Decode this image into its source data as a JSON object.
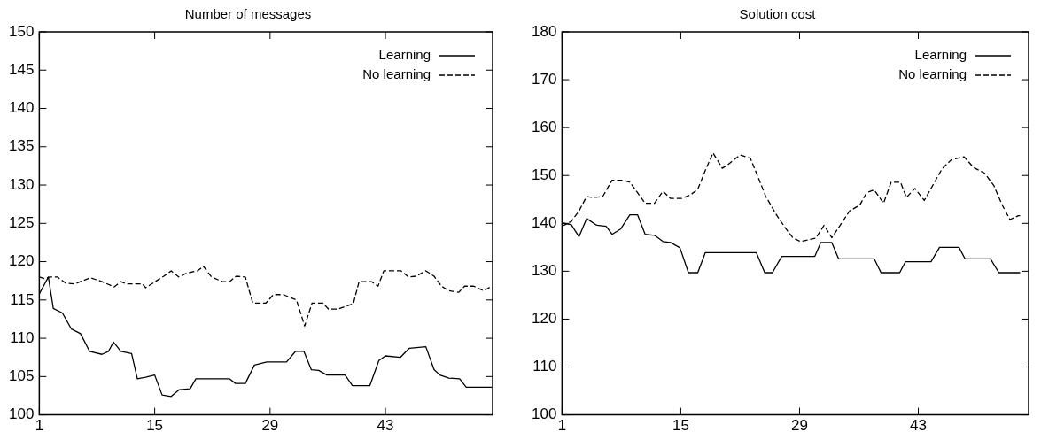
{
  "chart_data": [
    {
      "type": "line",
      "title": "Number of messages",
      "xlim": [
        1,
        56
      ],
      "xticks": [
        1,
        15,
        29,
        43
      ],
      "ylim": [
        100,
        150
      ],
      "yticks": [
        100,
        105,
        110,
        115,
        120,
        125,
        130,
        135,
        140,
        145,
        150
      ],
      "grid": false,
      "legend": "top right",
      "marker": "none",
      "series": [
        {
          "name": "Learning",
          "color": "#000000",
          "line_style": "solid",
          "x": [
            1,
            2.1,
            2.7,
            3.8,
            4.9,
            6,
            7.1,
            8.6,
            9.4,
            10,
            10.9,
            12.2,
            12.9,
            13.9,
            15,
            15.9,
            17,
            18,
            19.3,
            20,
            24.1,
            24.8,
            26,
            27.1,
            28.6,
            31,
            32.1,
            33.1,
            34,
            34.9,
            35.9,
            38.1,
            39,
            41.1,
            42.2,
            43,
            44.8,
            45.9,
            47.9,
            48.9,
            49.6,
            50.7,
            52,
            52.8,
            55.9
          ],
          "values": [
            115.8,
            118,
            113.9,
            113.3,
            111.2,
            110.6,
            108.3,
            107.9,
            108.3,
            109.5,
            108.3,
            108,
            104.7,
            104.9,
            105.2,
            102.6,
            102.4,
            103.3,
            103.4,
            104.7,
            104.7,
            104.1,
            104.1,
            106.5,
            106.9,
            106.9,
            108.3,
            108.3,
            105.9,
            105.8,
            105.2,
            105.2,
            103.8,
            103.8,
            107.1,
            107.7,
            107.5,
            108.7,
            108.9,
            105.9,
            105.2,
            104.8,
            104.7,
            103.6,
            103.6
          ]
        },
        {
          "name": "No learning",
          "color": "#000000",
          "line_style": "dashed",
          "x": [
            1,
            1.6,
            2.3,
            3.2,
            4.2,
            5.3,
            7.2,
            8.6,
            10.1,
            10.9,
            11.6,
            13.5,
            13.9,
            16.1,
            17,
            17.9,
            18.9,
            20.2,
            20.9,
            21.9,
            23.2,
            24.1,
            24.9,
            26,
            26.9,
            28.5,
            29.4,
            30.6,
            32.2,
            33.2,
            34.1,
            35.4,
            36.1,
            37.2,
            39.1,
            39.8,
            41.3,
            42.1,
            42.8,
            44.9,
            45.8,
            46.7,
            47.9,
            48.9,
            49.8,
            50.7,
            51.9,
            52.6,
            53.7,
            54.9,
            55.9
          ],
          "values": [
            118,
            117.8,
            118,
            118,
            117.2,
            117.1,
            117.9,
            117.4,
            116.7,
            117.4,
            117.1,
            117.1,
            116.6,
            118.1,
            118.8,
            118,
            118.5,
            118.8,
            119.4,
            118,
            117.4,
            117.4,
            118.1,
            118,
            114.6,
            114.6,
            115.7,
            115.7,
            115,
            111.6,
            114.6,
            114.6,
            113.8,
            113.8,
            114.5,
            117.4,
            117.4,
            116.8,
            118.8,
            118.8,
            118,
            118.1,
            118.8,
            118.1,
            116.8,
            116.2,
            116,
            116.8,
            116.8,
            116.2,
            116.8
          ]
        }
      ]
    },
    {
      "type": "line",
      "title": "Solution cost",
      "xlim": [
        1,
        56
      ],
      "xticks": [
        1,
        15,
        29,
        43
      ],
      "ylim": [
        100,
        180
      ],
      "yticks": [
        100,
        110,
        120,
        130,
        140,
        150,
        160,
        170,
        180
      ],
      "grid": false,
      "legend": "top right",
      "marker": "none",
      "series": [
        {
          "name": "Learning",
          "color": "#000000",
          "line_style": "solid",
          "x": [
            1,
            2.1,
            3,
            3.9,
            5.1,
            6.2,
            6.9,
            7.9,
            9,
            9.9,
            10.8,
            11.9,
            12.9,
            13.8,
            14.9,
            15.9,
            17,
            17.9,
            23.9,
            24.9,
            25.8,
            26.9,
            30.8,
            31.5,
            32.8,
            33.6,
            37.8,
            38.6,
            40.8,
            41.5,
            44.5,
            45.5,
            47.8,
            48.5,
            51.5,
            52.5,
            55
          ],
          "values": [
            140.1,
            139.7,
            137.2,
            141,
            139.6,
            139.4,
            137.7,
            138.8,
            141.8,
            141.8,
            137.7,
            137.5,
            136.2,
            136,
            134.9,
            129.7,
            129.7,
            133.9,
            133.9,
            129.7,
            129.7,
            133.1,
            133.1,
            136,
            136,
            132.6,
            132.6,
            129.7,
            129.7,
            132,
            132,
            135,
            135,
            132.6,
            132.6,
            129.7,
            129.7
          ]
        },
        {
          "name": "No learning",
          "color": "#000000",
          "line_style": "dashed",
          "x": [
            1,
            2.1,
            3,
            3.9,
            4.7,
            5.8,
            6.9,
            8.2,
            9,
            9.9,
            10.8,
            11.9,
            12.9,
            13.8,
            15.1,
            16.1,
            17,
            17.9,
            18.8,
            19.9,
            20.5,
            22,
            23.2,
            24.1,
            25,
            26.2,
            27.3,
            28.2,
            29.1,
            30.9,
            31.9,
            32.8,
            33.6,
            34.9,
            36.1,
            36.9,
            37.8,
            38.9,
            39.8,
            40.9,
            41.6,
            42.6,
            43.7,
            44.6,
            45.8,
            46.9,
            48.4,
            49.5,
            50.8,
            51.9,
            52.9,
            53.8,
            54.8,
            55
          ],
          "values": [
            139.4,
            140.4,
            142.6,
            145.6,
            145.4,
            145.6,
            149,
            149,
            148.6,
            146.4,
            144.2,
            144.2,
            146.7,
            145.2,
            145.2,
            145.9,
            147.1,
            151.1,
            154.7,
            151.5,
            152.2,
            154.3,
            153.6,
            149.7,
            145.7,
            142,
            139.1,
            137,
            136.2,
            136.9,
            139.6,
            137,
            139.1,
            142.6,
            143.8,
            146.4,
            147,
            144.2,
            148.6,
            148.6,
            145.4,
            147.3,
            144.8,
            147.6,
            151.4,
            153.3,
            153.9,
            151.7,
            150.5,
            147.9,
            143.8,
            140.8,
            141.6,
            141.6
          ]
        }
      ]
    }
  ]
}
